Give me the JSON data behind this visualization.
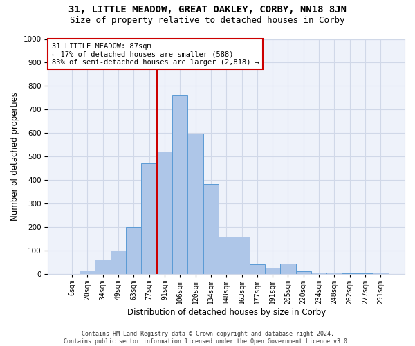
{
  "title": "31, LITTLE MEADOW, GREAT OAKLEY, CORBY, NN18 8JN",
  "subtitle": "Size of property relative to detached houses in Corby",
  "xlabel": "Distribution of detached houses by size in Corby",
  "ylabel": "Number of detached properties",
  "footnote1": "Contains HM Land Registry data © Crown copyright and database right 2024.",
  "footnote2": "Contains public sector information licensed under the Open Government Licence v3.0.",
  "annotation_line1": "31 LITTLE MEADOW: 87sqm",
  "annotation_line2": "← 17% of detached houses are smaller (588)",
  "annotation_line3": "83% of semi-detached houses are larger (2,818) →",
  "bar_labels": [
    "6sqm",
    "20sqm",
    "34sqm",
    "49sqm",
    "63sqm",
    "77sqm",
    "91sqm",
    "106sqm",
    "120sqm",
    "134sqm",
    "148sqm",
    "163sqm",
    "177sqm",
    "191sqm",
    "205sqm",
    "220sqm",
    "234sqm",
    "248sqm",
    "262sqm",
    "277sqm",
    "291sqm"
  ],
  "bar_values": [
    0,
    14,
    62,
    100,
    200,
    470,
    520,
    760,
    598,
    383,
    160,
    160,
    40,
    28,
    43,
    12,
    5,
    5,
    2,
    2,
    5
  ],
  "bar_color": "#aec6e8",
  "bar_edge_color": "#5b9bd5",
  "grid_color": "#d0d8e8",
  "bg_color": "#eef2fa",
  "vline_color": "#cc0000",
  "vline_x_index": 6,
  "ylim": [
    0,
    1000
  ],
  "title_fontsize": 10,
  "subtitle_fontsize": 9,
  "axis_label_fontsize": 8.5,
  "tick_fontsize": 7,
  "annotation_fontsize": 7.5,
  "footnote_fontsize": 6
}
